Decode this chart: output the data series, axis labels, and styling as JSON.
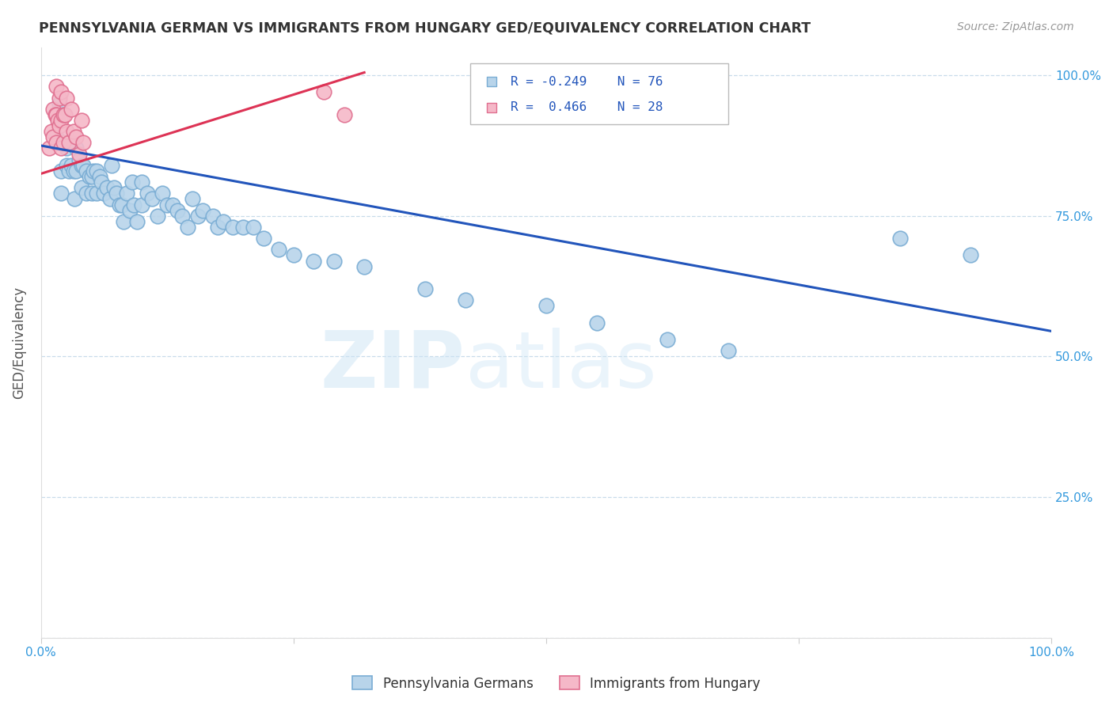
{
  "title": "PENNSYLVANIA GERMAN VS IMMIGRANTS FROM HUNGARY GED/EQUIVALENCY CORRELATION CHART",
  "source": "Source: ZipAtlas.com",
  "ylabel": "GED/Equivalency",
  "watermark": "ZIPatlas",
  "blue_R": -0.249,
  "blue_N": 76,
  "pink_R": 0.466,
  "pink_N": 28,
  "blue_color": "#b8d4ea",
  "blue_edge": "#7aadd4",
  "pink_color": "#f5b8c8",
  "pink_edge": "#e07090",
  "blue_line_color": "#2255bb",
  "pink_line_color": "#dd3355",
  "bg_color": "#ffffff",
  "grid_color": "#c8dcea",
  "axis_label_color": "#3399dd",
  "title_color": "#333333",
  "xlim": [
    0.0,
    1.0
  ],
  "ylim": [
    0.0,
    1.05
  ],
  "blue_trend_x0": 0.0,
  "blue_trend_x1": 1.0,
  "blue_trend_y0": 0.875,
  "blue_trend_y1": 0.545,
  "pink_trend_x0": 0.0,
  "pink_trend_x1": 0.32,
  "pink_trend_y0": 0.825,
  "pink_trend_y1": 1.005,
  "blue_x": [
    0.015,
    0.018,
    0.02,
    0.02,
    0.022,
    0.025,
    0.025,
    0.028,
    0.03,
    0.03,
    0.032,
    0.033,
    0.035,
    0.035,
    0.038,
    0.04,
    0.04,
    0.042,
    0.045,
    0.045,
    0.048,
    0.05,
    0.05,
    0.052,
    0.055,
    0.055,
    0.058,
    0.06,
    0.062,
    0.065,
    0.068,
    0.07,
    0.072,
    0.075,
    0.078,
    0.08,
    0.082,
    0.085,
    0.088,
    0.09,
    0.092,
    0.095,
    0.1,
    0.1,
    0.105,
    0.11,
    0.115,
    0.12,
    0.125,
    0.13,
    0.135,
    0.14,
    0.145,
    0.15,
    0.155,
    0.16,
    0.17,
    0.175,
    0.18,
    0.19,
    0.2,
    0.21,
    0.22,
    0.235,
    0.25,
    0.27,
    0.29,
    0.32,
    0.38,
    0.42,
    0.5,
    0.55,
    0.62,
    0.68,
    0.85,
    0.92
  ],
  "blue_y": [
    0.89,
    0.95,
    0.83,
    0.79,
    0.88,
    0.87,
    0.84,
    0.83,
    0.88,
    0.84,
    0.83,
    0.78,
    0.87,
    0.83,
    0.85,
    0.84,
    0.8,
    0.84,
    0.83,
    0.79,
    0.82,
    0.82,
    0.79,
    0.83,
    0.83,
    0.79,
    0.82,
    0.81,
    0.79,
    0.8,
    0.78,
    0.84,
    0.8,
    0.79,
    0.77,
    0.77,
    0.74,
    0.79,
    0.76,
    0.81,
    0.77,
    0.74,
    0.81,
    0.77,
    0.79,
    0.78,
    0.75,
    0.79,
    0.77,
    0.77,
    0.76,
    0.75,
    0.73,
    0.78,
    0.75,
    0.76,
    0.75,
    0.73,
    0.74,
    0.73,
    0.73,
    0.73,
    0.71,
    0.69,
    0.68,
    0.67,
    0.67,
    0.66,
    0.62,
    0.6,
    0.59,
    0.56,
    0.53,
    0.51,
    0.71,
    0.68
  ],
  "pink_x": [
    0.008,
    0.01,
    0.012,
    0.012,
    0.014,
    0.015,
    0.015,
    0.015,
    0.017,
    0.018,
    0.018,
    0.02,
    0.02,
    0.02,
    0.022,
    0.022,
    0.024,
    0.025,
    0.025,
    0.028,
    0.03,
    0.032,
    0.035,
    0.038,
    0.04,
    0.042,
    0.28,
    0.3
  ],
  "pink_y": [
    0.87,
    0.9,
    0.94,
    0.89,
    0.93,
    0.98,
    0.93,
    0.88,
    0.92,
    0.96,
    0.91,
    0.97,
    0.92,
    0.87,
    0.93,
    0.88,
    0.93,
    0.96,
    0.9,
    0.88,
    0.94,
    0.9,
    0.89,
    0.86,
    0.92,
    0.88,
    0.97,
    0.93
  ]
}
